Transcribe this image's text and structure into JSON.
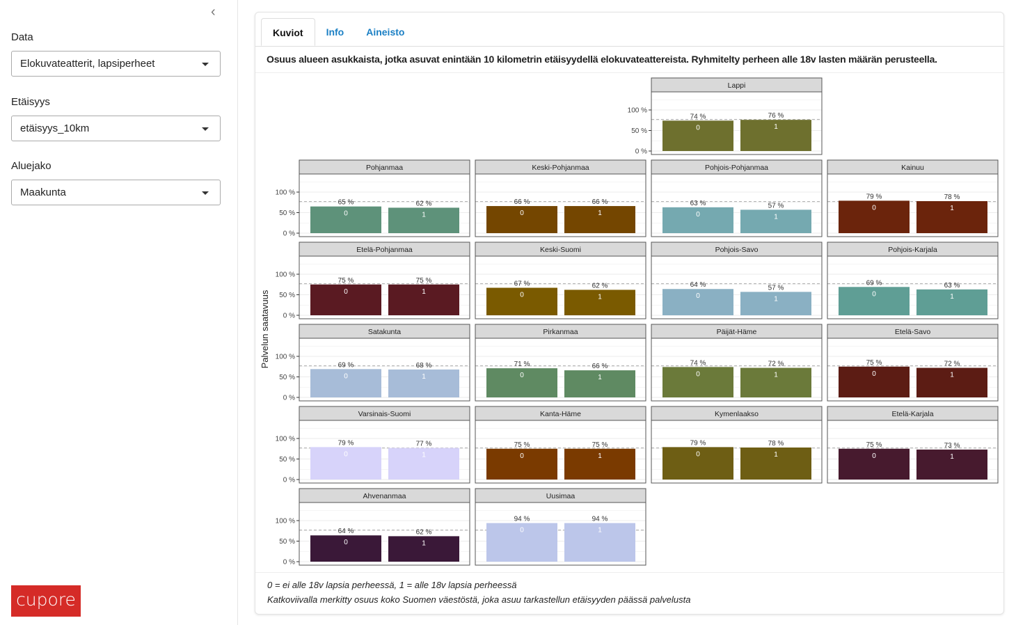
{
  "sidebar": {
    "collapse_icon": "chevron-left-icon",
    "data_label": "Data",
    "data_value": "Elokuvateatterit, lapsiperheet",
    "distance_label": "Etäisyys",
    "distance_value": "etäisyys_10km",
    "region_label": "Aluejako",
    "region_value": "Maakunta",
    "logo": "cupore"
  },
  "tabs": [
    "Kuviot",
    "Info",
    "Aineisto"
  ],
  "main": {
    "title": "Osuus alueen asukkaista, jotka asuvat enintään 10 kilometrin etäisyydellä elokuvateattereista. Ryhmitelty perheen alle 18v lasten määrän perusteella.",
    "note1": "0 = ei alle 18v lapsia perheessä, 1 = alle 18v lapsia perheessä",
    "note2": "Katkoviivalla merkitty osuus koko Suomen väestöstä, joka asuu tarkastellun etäisyyden päässä palvelusta"
  },
  "chart_data": {
    "type": "bar",
    "ylabel": "Palvelun saatavuus",
    "yticks": [
      "0 %",
      "50 %",
      "100 %"
    ],
    "ylim": [
      0,
      100
    ],
    "categories": [
      "0",
      "1"
    ],
    "reference_line": 77,
    "panels": [
      {
        "name": "Lappi",
        "values": [
          74,
          76
        ],
        "color": "#6e702e"
      },
      {
        "name": "Pohjanmaa",
        "values": [
          65,
          62
        ],
        "color": "#5e927a"
      },
      {
        "name": "Keski-Pohjanmaa",
        "values": [
          66,
          66
        ],
        "color": "#744600"
      },
      {
        "name": "Pohjois-Pohjanmaa",
        "values": [
          63,
          57
        ],
        "color": "#75a9b0"
      },
      {
        "name": "Kainuu",
        "values": [
          79,
          78
        ],
        "color": "#6b240c"
      },
      {
        "name": "Etelä-Pohjanmaa",
        "values": [
          75,
          75
        ],
        "color": "#5a1a22"
      },
      {
        "name": "Keski-Suomi",
        "values": [
          67,
          62
        ],
        "color": "#7a5a00"
      },
      {
        "name": "Pohjois-Savo",
        "values": [
          64,
          57
        ],
        "color": "#8ab0c3"
      },
      {
        "name": "Pohjois-Karjala",
        "values": [
          69,
          63
        ],
        "color": "#5f9e95"
      },
      {
        "name": "Satakunta",
        "values": [
          69,
          68
        ],
        "color": "#a7bcd8"
      },
      {
        "name": "Pirkanmaa",
        "values": [
          71,
          66
        ],
        "color": "#5f8a62"
      },
      {
        "name": "Päijät-Häme",
        "values": [
          74,
          72
        ],
        "color": "#6b7a3a"
      },
      {
        "name": "Etelä-Savo",
        "values": [
          75,
          72
        ],
        "color": "#5c1c14"
      },
      {
        "name": "Varsinais-Suomi",
        "values": [
          79,
          77
        ],
        "color": "#d7d3fa"
      },
      {
        "name": "Kanta-Häme",
        "values": [
          75,
          75
        ],
        "color": "#7a3a00"
      },
      {
        "name": "Kymenlaakso",
        "values": [
          79,
          78
        ],
        "color": "#6e5e14"
      },
      {
        "name": "Etelä-Karjala",
        "values": [
          75,
          73
        ],
        "color": "#471a2e"
      },
      {
        "name": "Ahvenanmaa",
        "values": [
          64,
          62
        ],
        "color": "#3a1838"
      },
      {
        "name": "Uusimaa",
        "values": [
          94,
          94
        ],
        "color": "#bcc6ea"
      }
    ]
  }
}
